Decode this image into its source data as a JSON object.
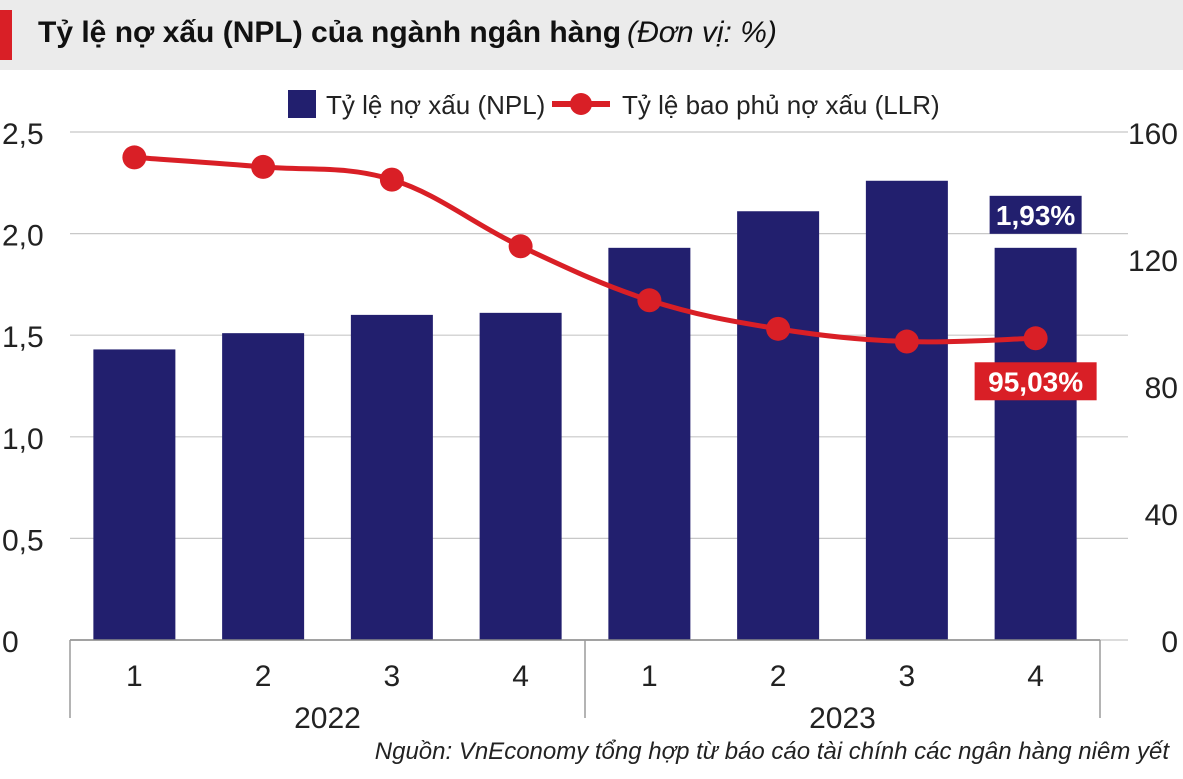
{
  "title": {
    "main": "Tỷ lệ nợ xấu (NPL) của ngành ngân hàng",
    "unit": "(Đơn vị: %)"
  },
  "source": "Nguồn: VnEconomy tổng hợp từ báo cáo tài chính các ngân hàng niêm yết",
  "colors": {
    "bar": "#221f6e",
    "line": "#d91f26",
    "title_accent": "#d91f26",
    "title_bg": "#ebebeb"
  },
  "chart_data": {
    "type": "bar",
    "title": "Tỷ lệ nợ xấu (NPL) của ngành ngân hàng",
    "categories": [
      "1",
      "2",
      "3",
      "4",
      "1",
      "2",
      "3",
      "4"
    ],
    "groups": [
      {
        "label": "2022",
        "from": 0,
        "to": 3
      },
      {
        "label": "2023",
        "from": 4,
        "to": 7
      }
    ],
    "series": [
      {
        "name": "Tỷ lệ nợ xấu (NPL)",
        "type": "bar",
        "axis": "left",
        "values": [
          1.43,
          1.51,
          1.6,
          1.61,
          1.93,
          2.11,
          2.26,
          1.93
        ]
      },
      {
        "name": "Tỷ lệ bao phủ nợ xấu (LLR)",
        "type": "line",
        "axis": "right",
        "values": [
          152,
          149,
          145,
          124,
          107,
          98,
          94,
          95.03
        ]
      }
    ],
    "left_axis": {
      "ylim": [
        0,
        2.5
      ],
      "ticks": [
        "0",
        "0,5",
        "1,0",
        "1,5",
        "2,0",
        "2,5"
      ]
    },
    "right_axis": {
      "ylim": [
        0,
        160
      ],
      "ticks": [
        "0",
        "40",
        "80",
        "120",
        "160"
      ]
    },
    "annotations": [
      {
        "series": 0,
        "index": 7,
        "text": "1,93%"
      },
      {
        "series": 1,
        "index": 7,
        "text": "95,03%"
      }
    ],
    "grid": true,
    "legend": "top"
  }
}
